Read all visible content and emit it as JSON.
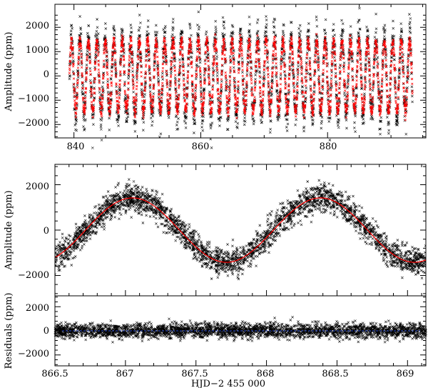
{
  "chart_data": [
    {
      "type": "scatter",
      "panel": "top",
      "title": "",
      "xlabel": "",
      "ylabel": "Amplitude (ppm)",
      "xlim": [
        837,
        895.5
      ],
      "ylim": [
        -2550,
        2950
      ],
      "xticks": [
        840,
        860,
        880
      ],
      "yticks": [
        -2000,
        -1000,
        0,
        1000,
        2000
      ],
      "grid": false,
      "series": [
        {
          "role": "observations",
          "marker": "x",
          "color": "#000000",
          "x_range": [
            839.3,
            893.4
          ],
          "period_days": 1.333,
          "amplitude_ppm": 1650,
          "noise_ppm": 380
        },
        {
          "role": "model",
          "marker": "x",
          "color": "#ff0000",
          "x_range": [
            839.3,
            893.4
          ],
          "period_days": 1.333,
          "amplitude_ppm": 1450
        }
      ]
    },
    {
      "type": "scatter",
      "panel": "middle",
      "title": "",
      "xlabel": "",
      "ylabel": "Amplitude (ppm)",
      "xlim": [
        866.5,
        869.13
      ],
      "ylim": [
        -2900,
        2900
      ],
      "xticks": [
        866.5,
        867,
        867.5,
        868,
        868.5,
        869
      ],
      "yticks": [
        -2000,
        0,
        2000
      ],
      "grid": false,
      "series": [
        {
          "role": "observations",
          "marker": "x",
          "color": "#000000",
          "x_range": [
            866.5,
            869.13
          ],
          "noise_ppm": 300
        },
        {
          "role": "model",
          "type": "line",
          "color": "#ff0000",
          "amplitude_ppm": 1420,
          "period_days": 1.333,
          "phase_max_hjd": 867.05
        }
      ]
    },
    {
      "type": "scatter",
      "panel": "bottom",
      "title": "",
      "xlabel": "HJD−2 455 000",
      "ylabel": "Residuals (ppm)",
      "xlim": [
        866.5,
        869.13
      ],
      "ylim": [
        -2900,
        2900
      ],
      "xticks": [
        866.5,
        867,
        867.5,
        868,
        868.5,
        869
      ],
      "yticks": [
        -2000,
        0,
        2000
      ],
      "grid": false,
      "series": [
        {
          "role": "residuals",
          "marker": "x",
          "color": "#000000",
          "mean_ppm": 0,
          "noise_ppm": 300
        },
        {
          "role": "zero-line",
          "type": "line",
          "color": "#2a4bd0",
          "value_ppm": 0
        }
      ]
    }
  ],
  "tick_labels": {
    "top_x": [
      "840",
      "860",
      "880"
    ],
    "top_y": [
      "2000",
      "1000",
      "0",
      "−1000",
      "−2000"
    ],
    "mid_y": [
      "2000",
      "0",
      "−2000"
    ],
    "bot_y": [
      "2000",
      "0",
      "−2000"
    ],
    "bot_x": [
      "866.5",
      "867",
      "867.5",
      "868",
      "868.5",
      "869"
    ]
  },
  "axis_titles": {
    "top_y": "Amplitude (ppm)",
    "mid_y": "Amplitude (ppm)",
    "bot_y": "Residuals (ppm)",
    "bot_x": "HJD−2 455 000"
  }
}
